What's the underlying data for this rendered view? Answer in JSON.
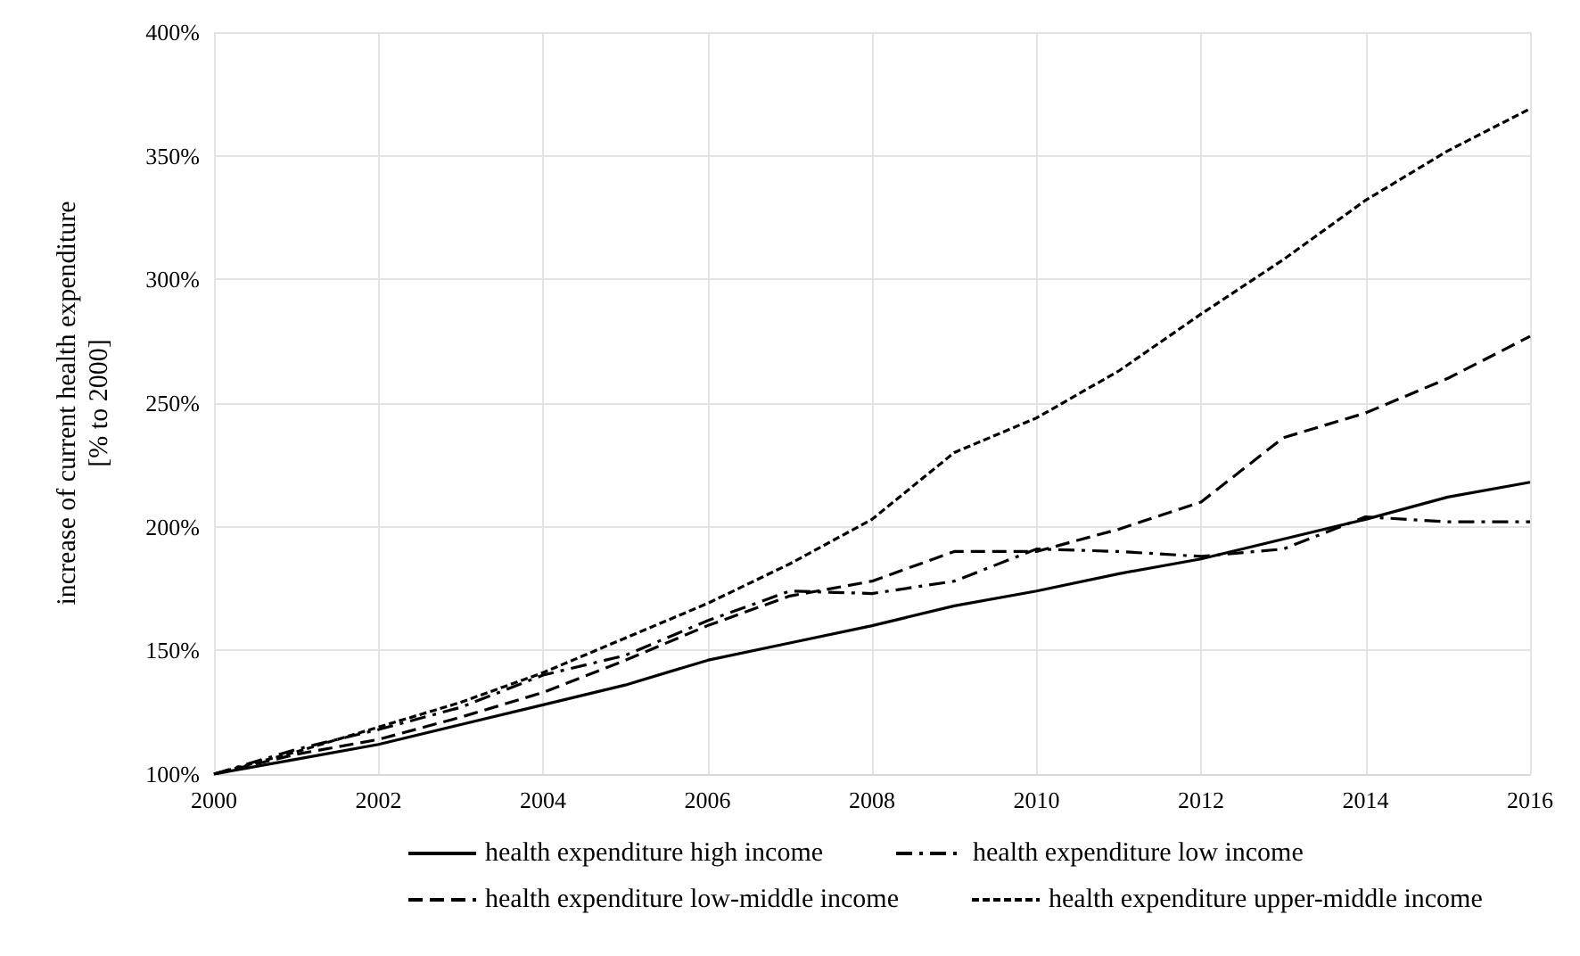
{
  "chart_data": {
    "type": "line",
    "ylabel": "increase of current health expenditure\n[% to 2000]",
    "x": [
      2000,
      2001,
      2002,
      2003,
      2004,
      2005,
      2006,
      2007,
      2008,
      2009,
      2010,
      2011,
      2012,
      2013,
      2014,
      2015,
      2016
    ],
    "xlim": [
      2000,
      2016
    ],
    "xticks": [
      2000,
      2002,
      2004,
      2006,
      2008,
      2010,
      2012,
      2014,
      2016
    ],
    "ylim": [
      100,
      400
    ],
    "yticks": [
      {
        "value": 100,
        "label": "100%"
      },
      {
        "value": 150,
        "label": "150%"
      },
      {
        "value": 200,
        "label": "200%"
      },
      {
        "value": 250,
        "label": "250%"
      },
      {
        "value": 300,
        "label": "300%"
      },
      {
        "value": 350,
        "label": "350%"
      },
      {
        "value": 400,
        "label": "400%"
      }
    ],
    "grid": true,
    "legend": "bottom",
    "marker": "none",
    "series": [
      {
        "name": "health expenditure high income",
        "color": "#000000",
        "line_style": "solid",
        "values": [
          100,
          106,
          112,
          120,
          128,
          136,
          146,
          153,
          160,
          168,
          174,
          181,
          187,
          195,
          203,
          212,
          218
        ]
      },
      {
        "name": "health expenditure low income",
        "color": "#000000",
        "line_style": "dashdot",
        "values": [
          100,
          110,
          118,
          127,
          140,
          148,
          162,
          174,
          173,
          178,
          191,
          190,
          188,
          191,
          204,
          202,
          202
        ]
      },
      {
        "name": "health expenditure low-middle income",
        "color": "#000000",
        "line_style": "dashed",
        "values": [
          100,
          108,
          114,
          123,
          133,
          146,
          160,
          172,
          178,
          190,
          190,
          199,
          210,
          236,
          246,
          260,
          277
        ]
      },
      {
        "name": "health expenditure upper-middle income",
        "color": "#000000",
        "line_style": "dotted",
        "values": [
          100,
          109,
          119,
          129,
          141,
          155,
          169,
          185,
          203,
          230,
          244,
          263,
          286,
          308,
          332,
          352,
          369
        ]
      }
    ]
  }
}
